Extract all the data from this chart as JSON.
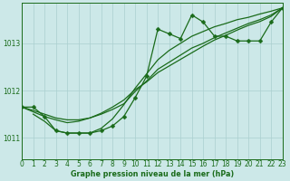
{
  "title": "Graphe pression niveau de la mer (hPa)",
  "bg_color": "#cce8e8",
  "grid_color": "#aacfcf",
  "line_color": "#1a6b1a",
  "xlim": [
    0,
    23
  ],
  "ylim": [
    1010.55,
    1013.85
  ],
  "yticks": [
    1011,
    1012,
    1013
  ],
  "xticks": [
    0,
    1,
    2,
    3,
    4,
    5,
    6,
    7,
    8,
    9,
    10,
    11,
    12,
    13,
    14,
    15,
    16,
    17,
    18,
    19,
    20,
    21,
    22,
    23
  ],
  "series": [
    {
      "x": [
        0,
        1,
        2,
        3,
        4,
        5,
        6,
        7,
        8,
        9,
        10,
        11,
        12,
        13,
        14,
        15,
        16,
        17,
        18,
        19,
        20,
        21,
        22,
        23
      ],
      "y": [
        1011.65,
        1011.65,
        1011.45,
        1011.15,
        1011.1,
        1011.1,
        1011.1,
        1011.15,
        1011.25,
        1011.45,
        1011.85,
        1012.3,
        1013.3,
        1013.2,
        1013.1,
        1013.6,
        1013.45,
        1013.15,
        1013.15,
        1013.05,
        1013.05,
        1013.05,
        1013.45,
        1013.75
      ],
      "has_markers": true
    },
    {
      "x": [
        1,
        2,
        3,
        4,
        5,
        6,
        7,
        8,
        9,
        10,
        11,
        12,
        13,
        14,
        15,
        16,
        17,
        18,
        19,
        20,
        21,
        22,
        23
      ],
      "y": [
        1011.5,
        1011.35,
        1011.15,
        1011.1,
        1011.1,
        1011.1,
        1011.2,
        1011.4,
        1011.7,
        1012.05,
        1012.35,
        1012.65,
        1012.85,
        1013.0,
        1013.15,
        1013.25,
        1013.35,
        1013.42,
        1013.5,
        1013.55,
        1013.62,
        1013.68,
        1013.75
      ],
      "has_markers": false
    },
    {
      "x": [
        0,
        1,
        2,
        3,
        4,
        5,
        6,
        7,
        8,
        9,
        10,
        11,
        12,
        13,
        14,
        15,
        16,
        17,
        18,
        19,
        20,
        21,
        22,
        23
      ],
      "y": [
        1011.65,
        1011.58,
        1011.5,
        1011.42,
        1011.38,
        1011.38,
        1011.42,
        1011.5,
        1011.6,
        1011.72,
        1011.98,
        1012.2,
        1012.45,
        1012.6,
        1012.75,
        1012.9,
        1013.0,
        1013.12,
        1013.22,
        1013.32,
        1013.42,
        1013.5,
        1013.6,
        1013.75
      ],
      "has_markers": false
    },
    {
      "x": [
        0,
        1,
        2,
        3,
        4,
        5,
        6,
        7,
        8,
        9,
        10,
        11,
        12,
        13,
        14,
        15,
        16,
        17,
        18,
        19,
        20,
        21,
        22,
        23
      ],
      "y": [
        1011.65,
        1011.55,
        1011.45,
        1011.38,
        1011.32,
        1011.35,
        1011.42,
        1011.52,
        1011.65,
        1011.8,
        1012.02,
        1012.18,
        1012.38,
        1012.52,
        1012.66,
        1012.8,
        1012.94,
        1013.07,
        1013.17,
        1013.28,
        1013.38,
        1013.46,
        1013.57,
        1013.75
      ],
      "has_markers": false
    }
  ],
  "markersize": 2.5,
  "linewidth": 0.9
}
